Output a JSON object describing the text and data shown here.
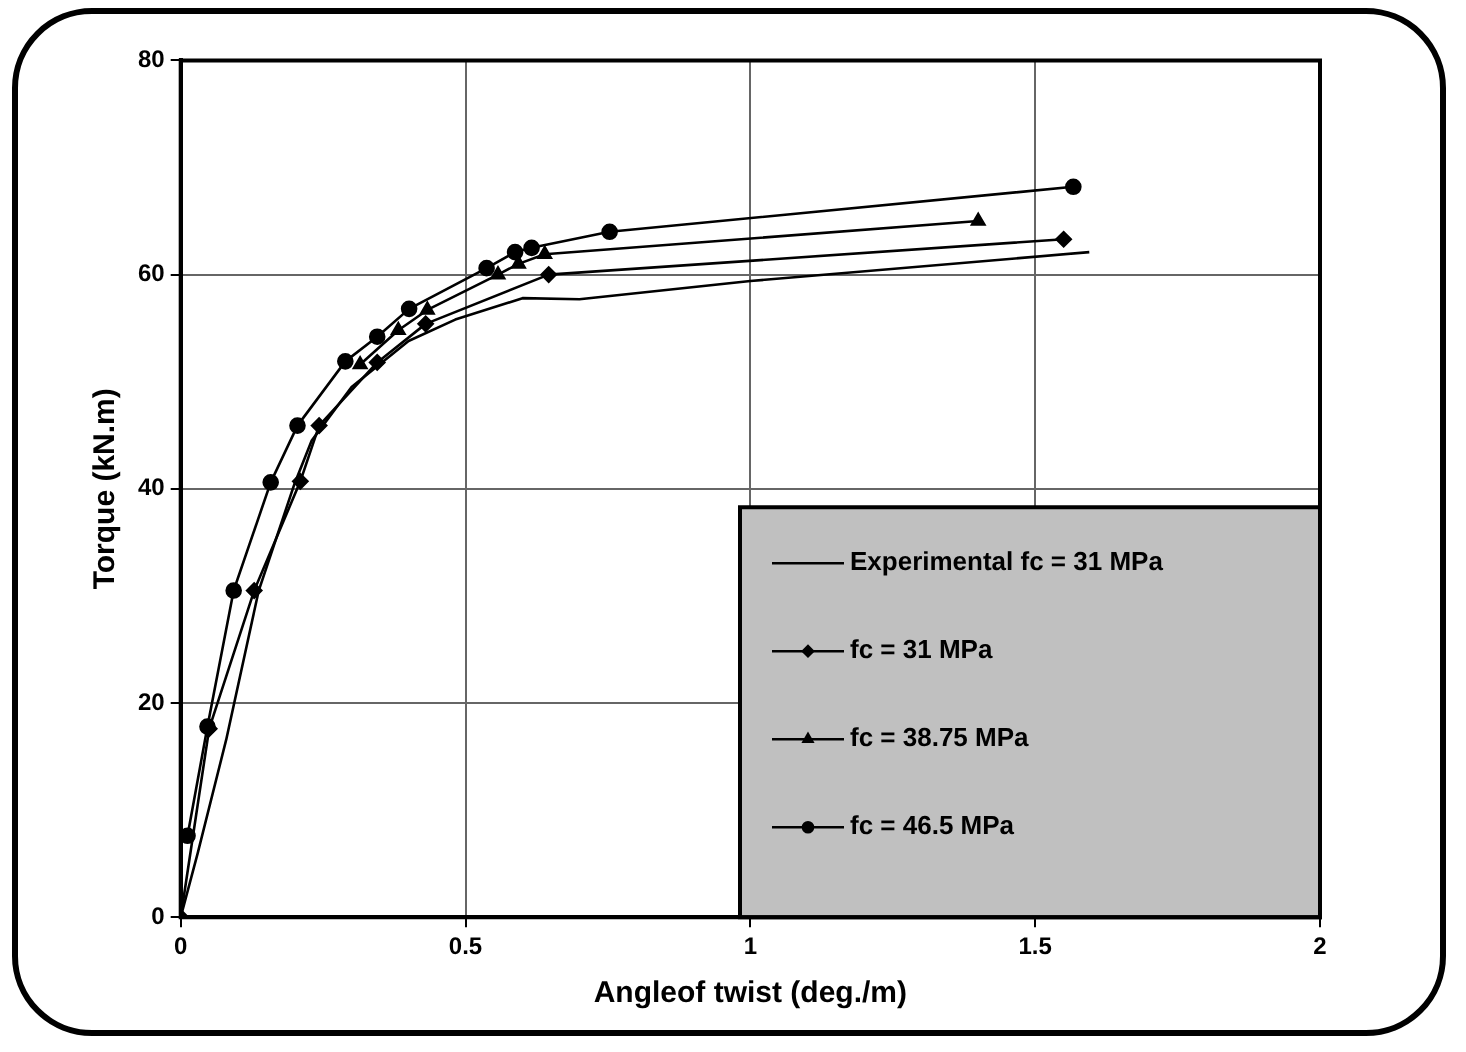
{
  "chart_data": {
    "type": "line",
    "xlabel": "Angleof twist (deg./m)",
    "ylabel": "Torque (kN.m)",
    "xlim": [
      0,
      2
    ],
    "xticks": [
      0,
      0.5,
      1,
      1.5,
      2
    ],
    "ylim": [
      0,
      80
    ],
    "yticks": [
      0,
      20,
      40,
      60,
      80
    ],
    "grid": true,
    "legend": "bottom right",
    "series": [
      {
        "name": "Experimental fc = 31 MPa",
        "color": "#000000",
        "marker": "none",
        "x": [
          0,
          0.03,
          0.08,
          0.137,
          0.2,
          0.23,
          0.3,
          0.4,
          0.482,
          0.6,
          0.7,
          1,
          1.595
        ],
        "values": [
          0,
          6,
          16.6,
          30.5,
          40.5,
          44.5,
          49.5,
          53.8,
          55.8,
          57.8,
          57.7,
          59.4,
          62.1
        ]
      },
      {
        "name": "fc = 31 MPa",
        "color": "#000000",
        "marker": "diamond",
        "x": [
          0,
          0.05,
          0.129,
          0.21,
          0.243,
          0.345,
          0.43,
          0.646,
          1.55
        ],
        "values": [
          0,
          17.6,
          30.5,
          40.7,
          45.9,
          51.8,
          55.4,
          60,
          63.3
        ]
      },
      {
        "name": "fc = 38.75 MPa",
        "color": "#000000",
        "marker": "triangle",
        "x": [
          0.315,
          0.382,
          0.433,
          0.557,
          0.593,
          0.639,
          1.4
        ],
        "values": [
          51.6,
          54.8,
          56.7,
          60,
          61,
          61.9,
          65
        ]
      },
      {
        "name": "fc = 46.5 MPa",
        "color": "#000000",
        "marker": "circle",
        "x": [
          0.012,
          0.047,
          0.093,
          0.158,
          0.205,
          0.289,
          0.345,
          0.401,
          0.537,
          0.587,
          0.616,
          0.753,
          1.567
        ],
        "values": [
          7.6,
          17.8,
          30.5,
          40.6,
          45.9,
          51.9,
          54.2,
          56.8,
          60.6,
          62.1,
          62.5,
          64,
          68.2
        ]
      }
    ]
  }
}
